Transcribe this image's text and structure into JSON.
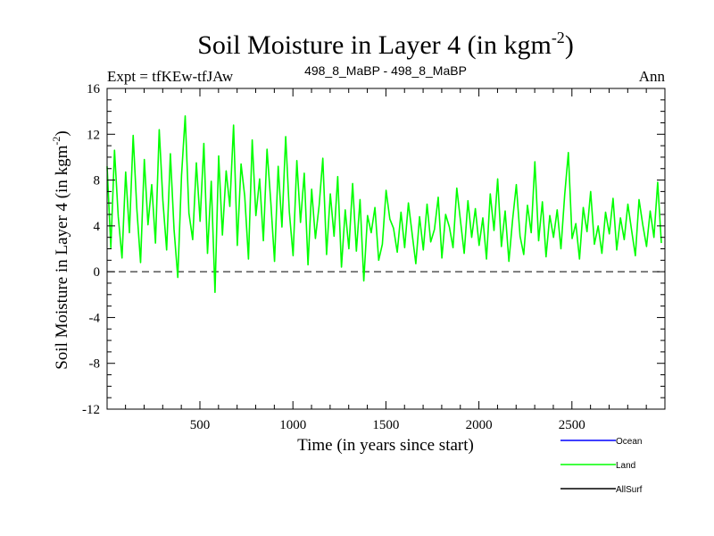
{
  "chart_data": {
    "type": "line",
    "title": "Soil Moisture in Layer 4 (in kgm",
    "title_sup": "-2",
    "title_close": ")",
    "subtitle_left": "Expt = tfKEw-tfJAw",
    "subtitle_center": "498_8_MaBP - 498_8_MaBP",
    "subtitle_right": "Ann",
    "xlabel": "Time (in years since start)",
    "ylabel": "Soil Moisture in Layer 4 (in kgm",
    "ylabel_sup": "-2",
    "ylabel_close": ")",
    "xlim": [
      1,
      3000
    ],
    "ylim": [
      -12,
      16
    ],
    "x_ticks": [
      500,
      1000,
      1500,
      2000,
      2500
    ],
    "y_ticks": [
      -12,
      -8,
      -4,
      0,
      4,
      8,
      12,
      16
    ],
    "zero_line": 0,
    "grid": false,
    "legend_position": "bottom-right",
    "series": [
      {
        "name": "Ocean",
        "color": "#0000ff",
        "values": []
      },
      {
        "name": "Land",
        "color": "#00ff00",
        "x_step_years": 20,
        "values": [
          9.2,
          2.1,
          10.6,
          4.8,
          1.2,
          8.7,
          3.4,
          11.9,
          5.5,
          0.8,
          9.8,
          4.1,
          7.6,
          2.5,
          12.4,
          6.2,
          1.9,
          10.3,
          3.7,
          -0.5,
          8.4,
          13.6,
          5.1,
          2.8,
          9.5,
          4.4,
          11.2,
          1.6,
          7.9,
          -1.8,
          10.1,
          3.2,
          8.8,
          5.7,
          12.8,
          2.3,
          9.4,
          6.6,
          1.1,
          11.5,
          4.9,
          8.1,
          2.7,
          10.7,
          6.1,
          0.9,
          9.2,
          3.9,
          11.8,
          5.2,
          1.4,
          9.7,
          4.3,
          8.6,
          0.6,
          7.2,
          2.9,
          5.8,
          9.9,
          1.5,
          6.8,
          3.1,
          8.3,
          0.4,
          5.4,
          2.0,
          7.7,
          1.8,
          6.3,
          -0.8,
          4.9,
          3.4,
          5.6,
          1.0,
          2.4,
          7.1,
          4.6,
          3.8,
          1.7,
          5.2,
          2.1,
          6.0,
          3.3,
          0.7,
          4.8,
          1.9,
          5.9,
          2.6,
          3.7,
          6.5,
          1.2,
          5.0,
          3.9,
          2.1,
          7.3,
          4.4,
          1.6,
          6.2,
          3.0,
          5.5,
          2.3,
          4.7,
          1.1,
          6.8,
          3.6,
          8.1,
          2.2,
          5.3,
          0.9,
          4.5,
          7.6,
          3.1,
          1.5,
          5.8,
          3.4,
          9.6,
          2.7,
          6.1,
          1.3,
          4.9,
          3.0,
          5.4,
          2.0,
          6.7,
          10.4,
          2.9,
          4.2,
          1.1,
          5.6,
          3.5,
          7.0,
          2.4,
          4.0,
          1.6,
          5.2,
          3.3,
          6.4,
          1.9,
          4.7,
          2.8,
          5.9,
          3.6,
          1.4,
          6.3,
          4.1,
          2.2,
          5.3,
          3.0,
          7.8,
          2.5,
          4.6,
          1.7,
          6.0,
          3.4
        ]
      },
      {
        "name": "AllSurf",
        "color": "#000000",
        "values": []
      }
    ]
  }
}
